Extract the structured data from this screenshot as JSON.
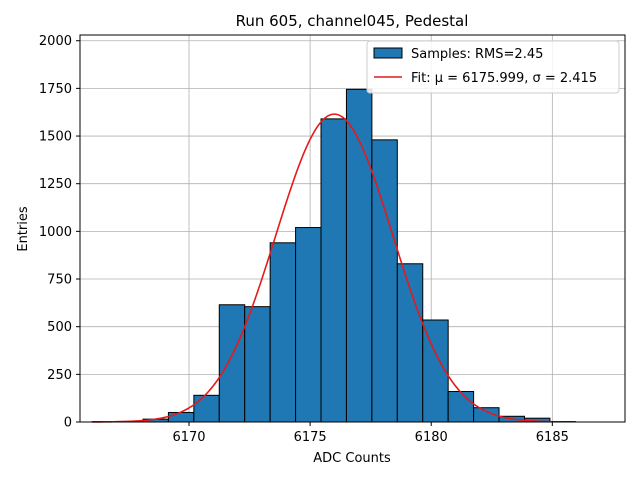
{
  "chart_data": {
    "type": "bar",
    "title": "Run 605, channel045, Pedestal",
    "xlabel": "ADC Counts",
    "ylabel": "Entries",
    "xlim": [
      6165.5,
      6188
    ],
    "ylim": [
      0,
      2030
    ],
    "xticks": [
      6170,
      6175,
      6180,
      6185
    ],
    "yticks": [
      0,
      250,
      500,
      750,
      1000,
      1250,
      1500,
      1750,
      2000
    ],
    "grid": true,
    "legend_position": "top-right",
    "histogram": {
      "name": "Samples: RMS=2.45",
      "color": "#1f77b4",
      "edgecolor": "#000000",
      "bin_width": 1.05,
      "bin_edges": [
        6166.0,
        6167.05,
        6168.1,
        6169.15,
        6170.2,
        6171.25,
        6172.3,
        6173.35,
        6174.4,
        6175.45,
        6176.5,
        6177.55,
        6178.6,
        6179.65,
        6180.7,
        6181.75,
        6182.8,
        6183.85,
        6184.9,
        6185.95,
        6187.0
      ],
      "counts": [
        2,
        3,
        15,
        50,
        140,
        615,
        605,
        940,
        1020,
        1590,
        1745,
        1480,
        830,
        535,
        160,
        75,
        30,
        20,
        2,
        0
      ]
    },
    "fit": {
      "name": "Fit: μ = 6175.999, σ = 2.415",
      "color": "#e41a1c",
      "mu": 6175.999,
      "sigma": 2.415,
      "amplitude": 1615,
      "x_range": [
        6166.0,
        6185.0
      ]
    }
  }
}
